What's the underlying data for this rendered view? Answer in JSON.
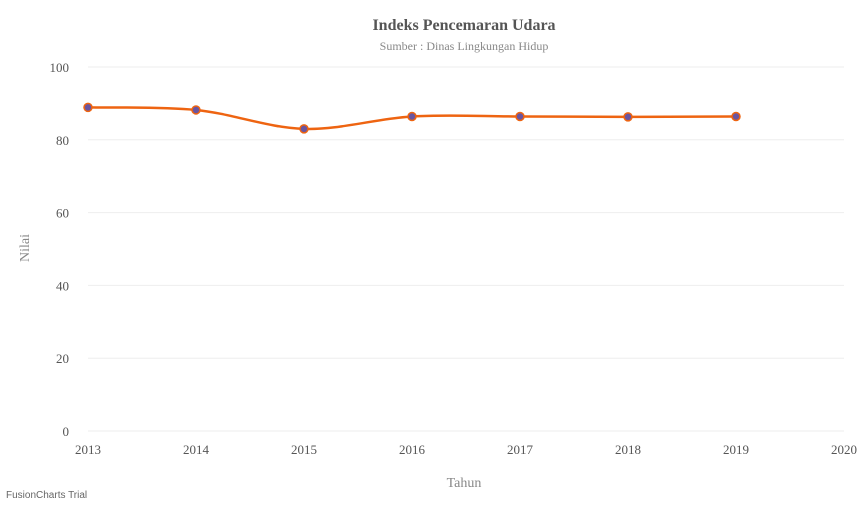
{
  "chart_data": {
    "type": "line",
    "title": "Indeks Pencemaran Udara",
    "subtitle": "Sumber : Dinas Lingkungan Hidup",
    "xlabel": "Tahun",
    "ylabel": "Nilai",
    "x_ticks": [
      "2013",
      "2014",
      "2015",
      "2016",
      "2017",
      "2018",
      "2019",
      "2020"
    ],
    "xlim": [
      2013,
      2020
    ],
    "ylim": [
      0,
      100
    ],
    "y_ticks": [
      0,
      20,
      40,
      60,
      80,
      100
    ],
    "grid": true,
    "smooth": true,
    "line_color": "#ee6411",
    "marker_fill": "#6a55a0",
    "marker_stroke": "#ee6411",
    "grid_color": "#eeeeee",
    "series": [
      {
        "x": [
          2013,
          2014,
          2015,
          2016,
          2017,
          2018,
          2019
        ],
        "values": [
          88.9,
          88.2,
          83.0,
          86.4,
          86.4,
          86.3,
          86.4
        ]
      }
    ]
  },
  "watermark": "FusionCharts Trial"
}
